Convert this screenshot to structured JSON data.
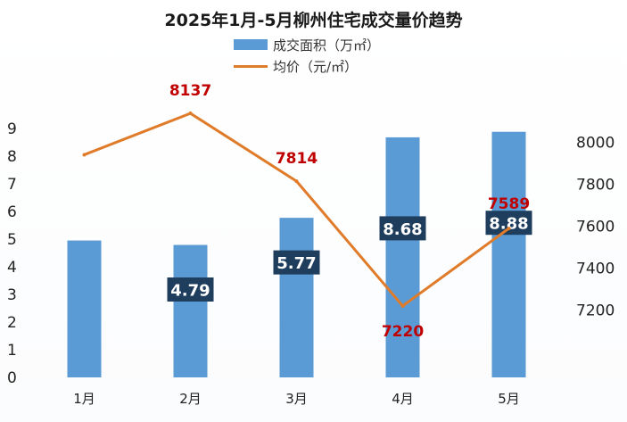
{
  "chart_data": {
    "type": "bar",
    "title": "2025年1月-5月柳州住宅成交量价趋势",
    "categories": [
      "1月",
      "2月",
      "3月",
      "4月",
      "5月"
    ],
    "series": [
      {
        "name": "成交面积（万㎡）",
        "type": "bar",
        "axis": "left",
        "color": "#5b9bd5",
        "values": [
          4.95,
          4.79,
          5.77,
          8.68,
          8.88
        ],
        "data_labels": [
          "",
          "4.79",
          "5.77",
          "8.68",
          "8.88"
        ]
      },
      {
        "name": "均价（元/㎡）",
        "type": "line",
        "axis": "right",
        "color": "#e07b2a",
        "values": [
          7940,
          8137,
          7814,
          7220,
          7589
        ],
        "data_labels": [
          "",
          "8137",
          "7814",
          "7220",
          "7589"
        ]
      }
    ],
    "y_left": {
      "ticks": [
        0,
        1,
        2,
        3,
        4,
        5,
        6,
        7,
        8,
        9
      ],
      "ylim": [
        0,
        9.9
      ]
    },
    "y_right": {
      "ticks": [
        7200,
        7400,
        7600,
        7800,
        8000
      ],
      "ylim": [
        6880,
        8150
      ]
    },
    "grid": false,
    "legend": "top-center"
  }
}
